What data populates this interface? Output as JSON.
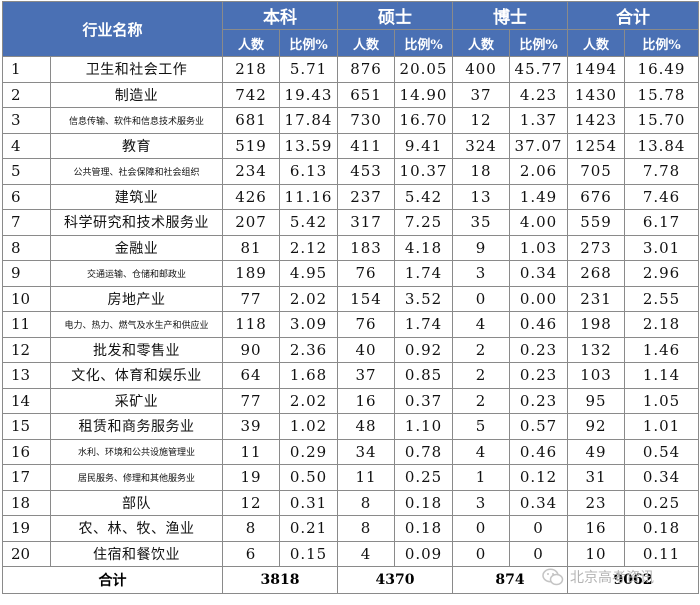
{
  "header": {
    "industry": "行业名称",
    "groups": [
      "本科",
      "硕士",
      "博士",
      "合计"
    ],
    "count": "人数",
    "ratio": "比例%"
  },
  "rows": [
    {
      "no": "1",
      "name": "卫生和社会工作",
      "small": false,
      "v": [
        "218",
        "5.71",
        "876",
        "20.05",
        "400",
        "45.77",
        "1494",
        "16.49"
      ]
    },
    {
      "no": "2",
      "name": "制造业",
      "small": false,
      "v": [
        "742",
        "19.43",
        "651",
        "14.90",
        "37",
        "4.23",
        "1430",
        "15.78"
      ]
    },
    {
      "no": "3",
      "name": "信息传输、软件和信息技术服务业",
      "small": true,
      "v": [
        "681",
        "17.84",
        "730",
        "16.70",
        "12",
        "1.37",
        "1423",
        "15.70"
      ]
    },
    {
      "no": "4",
      "name": "教育",
      "small": false,
      "v": [
        "519",
        "13.59",
        "411",
        "9.41",
        "324",
        "37.07",
        "1254",
        "13.84"
      ]
    },
    {
      "no": "5",
      "name": "公共管理、社会保障和社会组织",
      "small": true,
      "v": [
        "234",
        "6.13",
        "453",
        "10.37",
        "18",
        "2.06",
        "705",
        "7.78"
      ]
    },
    {
      "no": "6",
      "name": "建筑业",
      "small": false,
      "v": [
        "426",
        "11.16",
        "237",
        "5.42",
        "13",
        "1.49",
        "676",
        "7.46"
      ]
    },
    {
      "no": "7",
      "name": "科学研究和技术服务业",
      "small": false,
      "v": [
        "207",
        "5.42",
        "317",
        "7.25",
        "35",
        "4.00",
        "559",
        "6.17"
      ]
    },
    {
      "no": "8",
      "name": "金融业",
      "small": false,
      "v": [
        "81",
        "2.12",
        "183",
        "4.18",
        "9",
        "1.03",
        "273",
        "3.01"
      ]
    },
    {
      "no": "9",
      "name": "交通运输、仓储和邮政业",
      "small": true,
      "v": [
        "189",
        "4.95",
        "76",
        "1.74",
        "3",
        "0.34",
        "268",
        "2.96"
      ]
    },
    {
      "no": "10",
      "name": "房地产业",
      "small": false,
      "v": [
        "77",
        "2.02",
        "154",
        "3.52",
        "0",
        "0.00",
        "231",
        "2.55"
      ]
    },
    {
      "no": "11",
      "name": "电力、热力、燃气及水生产和供应业",
      "small": true,
      "v": [
        "118",
        "3.09",
        "76",
        "1.74",
        "4",
        "0.46",
        "198",
        "2.18"
      ]
    },
    {
      "no": "12",
      "name": "批发和零售业",
      "small": false,
      "v": [
        "90",
        "2.36",
        "40",
        "0.92",
        "2",
        "0.23",
        "132",
        "1.46"
      ]
    },
    {
      "no": "13",
      "name": "文化、体育和娱乐业",
      "small": false,
      "v": [
        "64",
        "1.68",
        "37",
        "0.85",
        "2",
        "0.23",
        "103",
        "1.14"
      ]
    },
    {
      "no": "14",
      "name": "采矿业",
      "small": false,
      "v": [
        "77",
        "2.02",
        "16",
        "0.37",
        "2",
        "0.23",
        "95",
        "1.05"
      ]
    },
    {
      "no": "15",
      "name": "租赁和商务服务业",
      "small": false,
      "v": [
        "39",
        "1.02",
        "48",
        "1.10",
        "5",
        "0.57",
        "92",
        "1.01"
      ]
    },
    {
      "no": "16",
      "name": "水利、环境和公共设施管理业",
      "small": true,
      "v": [
        "11",
        "0.29",
        "34",
        "0.78",
        "4",
        "0.46",
        "49",
        "0.54"
      ]
    },
    {
      "no": "17",
      "name": "居民服务、修理和其他服务业",
      "small": true,
      "v": [
        "19",
        "0.50",
        "11",
        "0.25",
        "1",
        "0.12",
        "31",
        "0.34"
      ]
    },
    {
      "no": "18",
      "name": "部队",
      "small": false,
      "v": [
        "12",
        "0.31",
        "8",
        "0.18",
        "3",
        "0.34",
        "23",
        "0.25"
      ]
    },
    {
      "no": "19",
      "name": "农、林、牧、渔业",
      "small": false,
      "v": [
        "8",
        "0.21",
        "8",
        "0.18",
        "0",
        "0",
        "16",
        "0.18"
      ]
    },
    {
      "no": "20",
      "name": "住宿和餐饮业",
      "small": false,
      "v": [
        "6",
        "0.15",
        "4",
        "0.09",
        "0",
        "0",
        "10",
        "0.11"
      ]
    }
  ],
  "total": {
    "label": "合计",
    "values": [
      "3818",
      "4370",
      "874",
      "9062"
    ]
  },
  "watermark": {
    "icon": "wechat-icon",
    "text": "北京高考资讯"
  }
}
